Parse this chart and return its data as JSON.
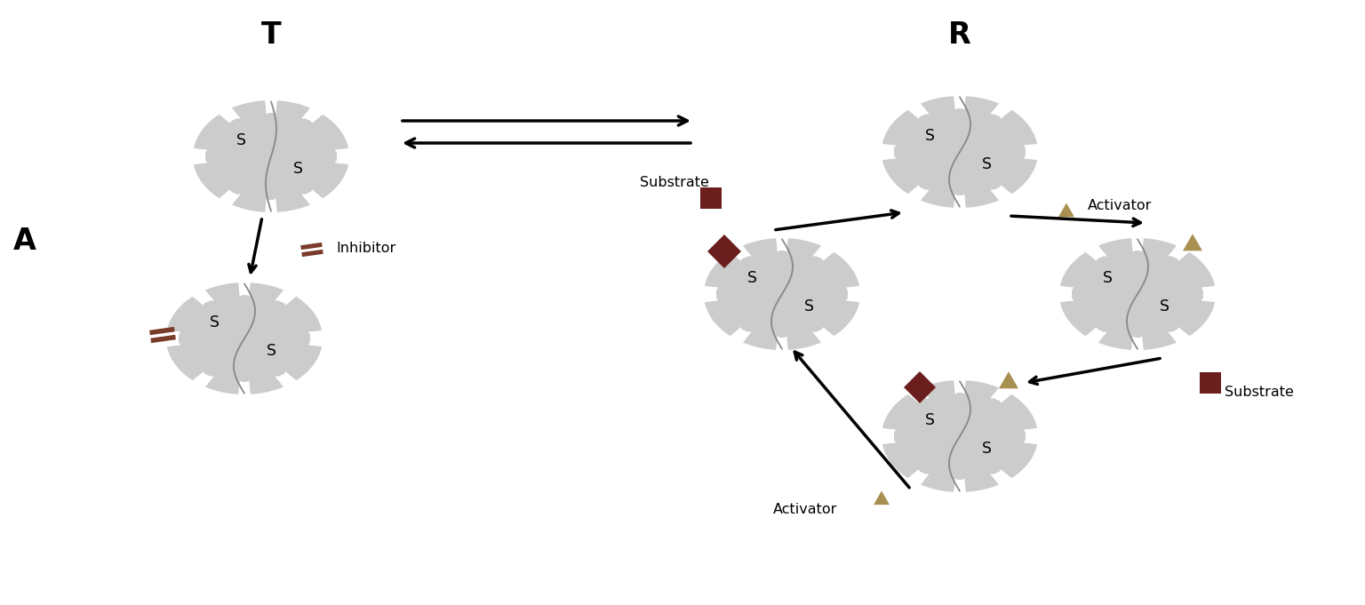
{
  "bg_color": "#ffffff",
  "enzyme_color": "#cccccc",
  "curve_color": "#888888",
  "inhibitor_color": "#7B3B2A",
  "substrate_color": "#6B1E1E",
  "activator_color": "#A89050",
  "label_T": "T",
  "label_R": "R",
  "label_A": "A",
  "label_inhibitor": "Inhibitor",
  "label_substrate": "Substrate",
  "label_activator": "Activator",
  "label_S": "S",
  "font_bold_size": 24,
  "font_label_size": 11.5
}
